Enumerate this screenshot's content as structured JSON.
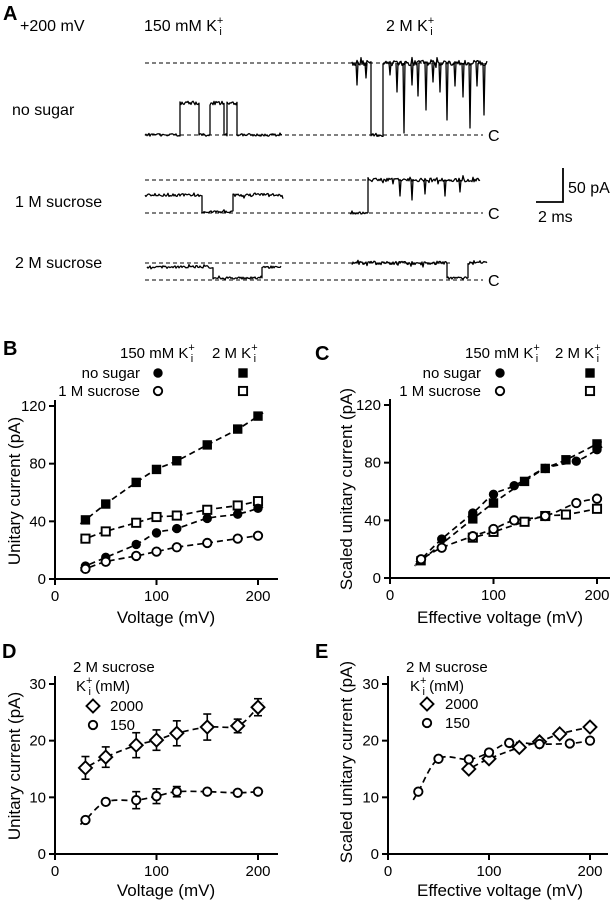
{
  "panel_a": {
    "label": "A",
    "holding_potential": "+200 mV",
    "col_headers": [
      {
        "parts": [
          {
            "t": "150 mM  K"
          },
          {
            "t": "+",
            "sup": true
          },
          {
            "t": "i",
            "sub": true
          }
        ]
      },
      {
        "parts": [
          {
            "t": "2 M  K"
          },
          {
            "t": "+",
            "sup": true
          },
          {
            "t": "i",
            "sub": true
          }
        ]
      }
    ],
    "row_labels": [
      "no sugar",
      "1 M sucrose",
      "2 M sucrose"
    ],
    "closed_labels": [
      "C",
      "C",
      "C"
    ],
    "scale_bar": {
      "current": "50 pA",
      "time": "2 ms"
    },
    "traces": [
      {
        "row": 0,
        "side": "left",
        "segs": [
          [
            145,
            180,
            135,
            1.2
          ],
          [
            180,
            199,
            103,
            1.8
          ],
          [
            199,
            210,
            135,
            1.2
          ],
          [
            210,
            224,
            103,
            1.8
          ],
          [
            224,
            227,
            135,
            1.2
          ],
          [
            227,
            237,
            103,
            1.8
          ],
          [
            237,
            282,
            135,
            1.2
          ]
        ],
        "spikes": []
      },
      {
        "row": 0,
        "side": "right",
        "segs": [
          [
            352,
            371,
            63,
            2.6
          ],
          [
            371,
            383,
            135,
            1.6
          ],
          [
            383,
            487,
            63,
            2.6
          ]
        ],
        "spikes": [
          [
            357,
            85
          ],
          [
            366,
            78
          ],
          [
            390,
            75
          ],
          [
            397,
            92
          ],
          [
            404,
            133
          ],
          [
            412,
            85
          ],
          [
            418,
            96
          ],
          [
            426,
            110
          ],
          [
            433,
            82
          ],
          [
            440,
            92
          ],
          [
            447,
            120
          ],
          [
            455,
            86
          ],
          [
            463,
            97
          ],
          [
            470,
            128
          ],
          [
            477,
            86
          ],
          [
            484,
            115
          ]
        ]
      },
      {
        "row": 1,
        "side": "left",
        "segs": [
          [
            145,
            202,
            195,
            1.5
          ],
          [
            202,
            233,
            212,
            1.1
          ],
          [
            233,
            283,
            195,
            1.5
          ]
        ],
        "spikes": []
      },
      {
        "row": 1,
        "side": "right",
        "segs": [
          [
            350,
            368,
            213,
            1.1
          ],
          [
            368,
            480,
            180,
            1.8
          ]
        ],
        "spikes": [
          [
            400,
            196
          ],
          [
            412,
            200
          ],
          [
            425,
            194
          ],
          [
            445,
            196
          ],
          [
            460,
            192
          ]
        ]
      },
      {
        "row": 2,
        "side": "left",
        "segs": [
          [
            147,
            213,
            267,
            1.4
          ],
          [
            213,
            262,
            278,
            1.1
          ],
          [
            262,
            281,
            267,
            1.4
          ]
        ],
        "spikes": []
      },
      {
        "row": 2,
        "side": "right",
        "segs": [
          [
            352,
            447,
            263,
            1.8
          ],
          [
            447,
            468,
            278,
            1.1
          ],
          [
            468,
            487,
            263,
            1.5
          ]
        ],
        "spikes": []
      }
    ]
  },
  "chart_data": [
    {
      "panel": "B",
      "type": "scatter",
      "xlabel": "Voltage (mV)",
      "ylabel": "Unitary current (pA)",
      "xlim": [
        0,
        218
      ],
      "ylim": [
        0,
        124
      ],
      "xticks": [
        0,
        100,
        200
      ],
      "yticks": [
        0,
        40,
        80,
        120
      ],
      "legend": {
        "col_headers": [
          {
            "parts": [
              {
                "t": "150 mM  K"
              },
              {
                "t": "+",
                "sup": true
              },
              {
                "t": "i",
                "sub": true
              }
            ]
          },
          {
            "parts": [
              {
                "t": "2 M  K"
              },
              {
                "t": "+",
                "sup": true
              },
              {
                "t": "i",
                "sub": true
              }
            ]
          }
        ],
        "rows": [
          {
            "label": "no sugar",
            "markers": [
              "filled-circle",
              "filled-square"
            ]
          },
          {
            "label": "1 M sucrose",
            "markers": [
              "open-circle",
              "open-square"
            ]
          }
        ]
      },
      "series": [
        {
          "name": "2 M K no sugar",
          "marker": "filled-square",
          "x": [
            30,
            50,
            80,
            100,
            120,
            150,
            180,
            200
          ],
          "y": [
            41,
            52,
            67,
            76,
            82,
            93,
            104,
            113
          ]
        },
        {
          "name": "2 M K 1 M sucrose",
          "marker": "open-square",
          "x": [
            30,
            50,
            80,
            100,
            120,
            150,
            180,
            200
          ],
          "y": [
            28,
            33,
            39,
            43,
            44,
            48,
            51,
            54
          ]
        },
        {
          "name": "150 mM K no sugar",
          "marker": "filled-circle",
          "x": [
            30,
            50,
            80,
            100,
            120,
            150,
            180,
            200
          ],
          "y": [
            9,
            15,
            24,
            32,
            35,
            42,
            45,
            49
          ]
        },
        {
          "name": "150 mM K 1 M sucrose",
          "marker": "open-circle",
          "x": [
            30,
            50,
            80,
            100,
            120,
            150,
            180,
            200
          ],
          "y": [
            7,
            12,
            16,
            19,
            22,
            25,
            28,
            30
          ]
        }
      ]
    },
    {
      "panel": "C",
      "type": "scatter",
      "xlabel": "Effective voltage (mV)",
      "ylabel": "Scaled unitary current (pA)",
      "xlim": [
        0,
        213
      ],
      "ylim": [
        0,
        124
      ],
      "xticks": [
        0,
        100,
        200
      ],
      "yticks": [
        0,
        40,
        80,
        120
      ],
      "legend": {
        "col_headers": [
          {
            "parts": [
              {
                "t": "150 mM  K"
              },
              {
                "t": "+",
                "sup": true
              },
              {
                "t": "i",
                "sub": true
              }
            ]
          },
          {
            "parts": [
              {
                "t": "2 M  K"
              },
              {
                "t": "+",
                "sup": true
              },
              {
                "t": "i",
                "sub": true
              }
            ]
          }
        ],
        "rows": [
          {
            "label": "no sugar",
            "markers": [
              "filled-circle",
              "filled-square"
            ]
          },
          {
            "label": "1 M sucrose",
            "markers": [
              "open-circle",
              "open-square"
            ]
          }
        ]
      },
      "series": [
        {
          "name": "2 M K no sugar",
          "marker": "filled-square",
          "x": [
            30,
            80,
            100,
            130,
            150,
            170,
            200
          ],
          "y": [
            12,
            41,
            52,
            67,
            76,
            82,
            93
          ]
        },
        {
          "name": "2 M K 1 M sucrose",
          "marker": "open-square",
          "x": [
            80,
            100,
            130,
            150,
            170,
            200
          ],
          "y": [
            28,
            32,
            39,
            43,
            44,
            48
          ]
        },
        {
          "name": "150 mM K no sugar",
          "marker": "filled-circle",
          "x": [
            30,
            50,
            80,
            100,
            120,
            150,
            180,
            200
          ],
          "y": [
            13,
            27,
            45,
            58,
            64,
            76,
            81,
            89
          ]
        },
        {
          "name": "150 mM K 1 M sucrose",
          "marker": "open-circle",
          "x": [
            30,
            50,
            80,
            100,
            120,
            150,
            180,
            200
          ],
          "y": [
            13,
            21,
            29,
            34,
            40,
            43,
            52,
            55
          ]
        }
      ]
    },
    {
      "panel": "D",
      "type": "scatter",
      "xlabel": "Voltage (mV)",
      "ylabel": "Unitary current (pA)",
      "xlim": [
        0,
        218
      ],
      "ylim": [
        0,
        31
      ],
      "xticks": [
        0,
        100,
        200
      ],
      "yticks": [
        0,
        10,
        20,
        30
      ],
      "legend": {
        "title": "2 M sucrose",
        "k_parts": [
          {
            "t": "K"
          },
          {
            "t": "+",
            "sup": true
          },
          {
            "t": "i",
            "sub": true
          },
          {
            "t": " (mM)"
          }
        ],
        "entries": [
          {
            "marker": "open-diamond",
            "label": "2000"
          },
          {
            "marker": "open-circle",
            "label": "150"
          }
        ]
      },
      "series": [
        {
          "name": "2000 mM K",
          "marker": "open-diamond",
          "x": [
            30,
            50,
            80,
            100,
            120,
            150,
            180,
            200
          ],
          "y": [
            15.2,
            17.1,
            19.2,
            20.1,
            21.3,
            22.4,
            22.6,
            25.9
          ],
          "err": [
            2.0,
            1.8,
            2.2,
            1.8,
            2.2,
            2.3,
            1.2,
            1.5
          ]
        },
        {
          "name": "150 mM K",
          "marker": "open-circle",
          "x": [
            30,
            50,
            80,
            100,
            120,
            150,
            180,
            200
          ],
          "y": [
            6.0,
            9.2,
            9.5,
            10.2,
            11.0,
            11.0,
            10.8,
            11.0
          ],
          "err": [
            0,
            0,
            1.5,
            1.3,
            0.9,
            0,
            0,
            0
          ]
        }
      ]
    },
    {
      "panel": "E",
      "type": "scatter",
      "xlabel": "Effective voltage (mV)",
      "ylabel": "Scaled unitary current (pA)",
      "xlim": [
        0,
        213
      ],
      "ylim": [
        0,
        31
      ],
      "xticks": [
        0,
        100,
        200
      ],
      "yticks": [
        0,
        10,
        20,
        30
      ],
      "legend": {
        "title": "2 M sucrose",
        "k_parts": [
          {
            "t": "K"
          },
          {
            "t": "+",
            "sup": true
          },
          {
            "t": "i",
            "sub": true
          },
          {
            "t": " (mM)"
          }
        ],
        "entries": [
          {
            "marker": "open-diamond",
            "label": "2000"
          },
          {
            "marker": "open-circle",
            "label": "150"
          }
        ]
      },
      "series": [
        {
          "name": "2000 mM K",
          "marker": "open-diamond",
          "x": [
            80,
            100,
            130,
            150,
            170,
            200
          ],
          "y": [
            15.0,
            16.8,
            18.8,
            19.8,
            21.2,
            22.4
          ]
        },
        {
          "name": "150 mM K",
          "marker": "open-circle",
          "x": [
            30,
            50,
            80,
            100,
            120,
            150,
            180,
            200
          ],
          "y": [
            11.0,
            16.8,
            16.7,
            17.9,
            19.6,
            19.4,
            19.5,
            20.0
          ]
        }
      ]
    }
  ]
}
